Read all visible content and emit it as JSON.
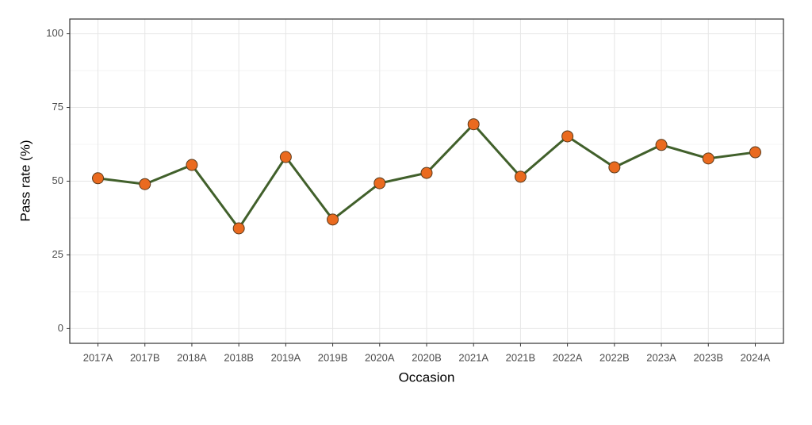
{
  "chart_data": {
    "type": "line",
    "x_label": "Occasion",
    "y_label": "Pass rate (%)",
    "categories": [
      "2017A",
      "2017B",
      "2018A",
      "2018B",
      "2019A",
      "2019B",
      "2020A",
      "2020B",
      "2021A",
      "2021B",
      "2022A",
      "2022B",
      "2023A",
      "2023B",
      "2024A"
    ],
    "series": [
      {
        "name": "Pass rate",
        "color": "#41602b",
        "marker_color": "#ea6a1f",
        "values": [
          51,
          49,
          55.5,
          34,
          58.2,
          37,
          49.3,
          52.8,
          69.3,
          51.5,
          65.2,
          54.7,
          62.3,
          57.7,
          59.8
        ]
      }
    ],
    "ylim": [
      -5,
      105
    ],
    "yticks": [
      0,
      25,
      50,
      75,
      100
    ],
    "grid": true
  }
}
